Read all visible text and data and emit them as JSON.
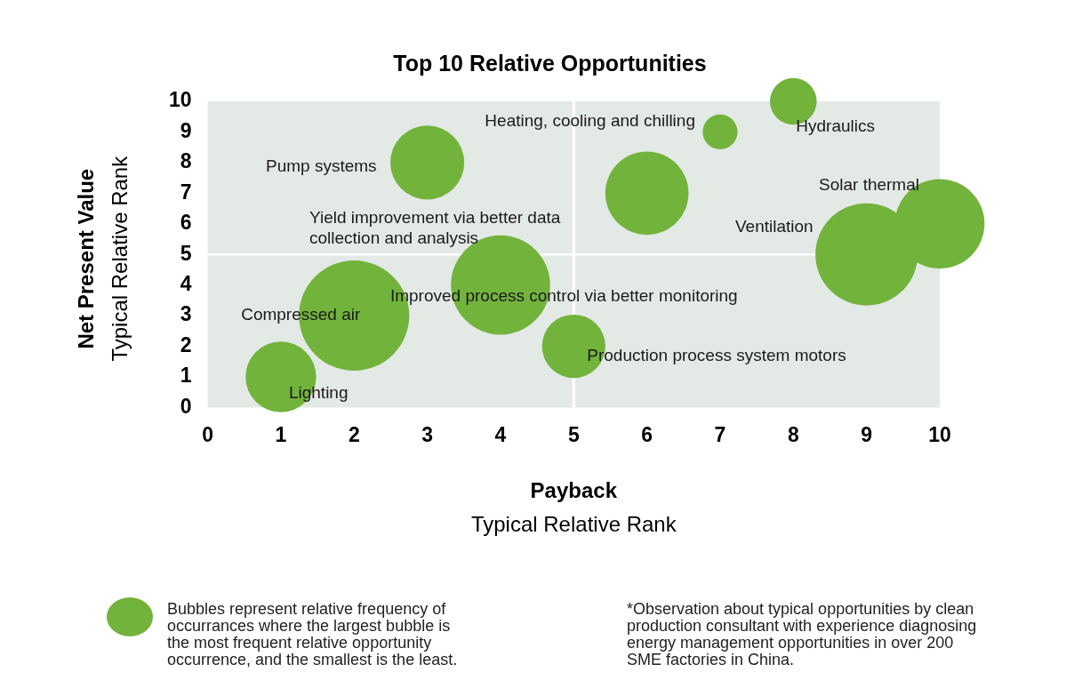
{
  "chart_data": {
    "type": "bubble",
    "title": "Top 10 Relative Opportunities",
    "xlabel": "Payback\nTypical Relative Rank",
    "ylabel": "Net Present Value\nTypical Relative Rank",
    "x": [
      1,
      2,
      3,
      4,
      5,
      6,
      7,
      8,
      9,
      10
    ],
    "values": [
      1,
      3,
      8,
      4,
      2,
      7,
      9,
      10,
      5,
      6
    ],
    "sizes": [
      0.41,
      1,
      0.45,
      0.81,
      0.33,
      0.57,
      0.1,
      0.18,
      0.86,
      0.66
    ],
    "color": "#72b33c",
    "xlim": [
      0,
      10
    ],
    "xticks": [
      0,
      1,
      2,
      3,
      4,
      5,
      6,
      7,
      8,
      9,
      10
    ],
    "ylim": [
      0,
      10
    ],
    "yticks": [
      0,
      1,
      2,
      3,
      4,
      5,
      6,
      7,
      8,
      9,
      10
    ],
    "ref_lines": [
      {
        "axis": "x",
        "value": 5,
        "color": "#ffffff"
      },
      {
        "axis": "y",
        "value": 5,
        "color": "#ffffff"
      }
    ],
    "annotations": [
      {
        "text": "Lighting",
        "x": 1,
        "y": 1
      },
      {
        "text": "Compressed air",
        "x": 2,
        "y": 3
      },
      {
        "text": "Pump systems",
        "x": 3,
        "y": 8
      },
      {
        "text": "Improved process control via better monitoring",
        "x": 4,
        "y": 4
      },
      {
        "text": "Production process system motors",
        "x": 5,
        "y": 2
      },
      "Yield improvement via better data collection and analysis",
      {
        "text": "Heating, cooling and chilling",
        "x": 7,
        "y": 9
      },
      {
        "text": "Hydraulics",
        "x": 8,
        "y": 10
      },
      "Ventilation",
      {
        "text": "Solar thermal",
        "x": 10,
        "y": 6
      },
      "Bubbles represent relative frequency of occurrances where the largest bubble is the most frequent relative opportunity occurrence, and the smallest is the least.",
      "*Observation about typical opportunities by clean production consultant with experience diagnosing energy management opportunities in over 200 SME factories in China."
    ]
  }
}
